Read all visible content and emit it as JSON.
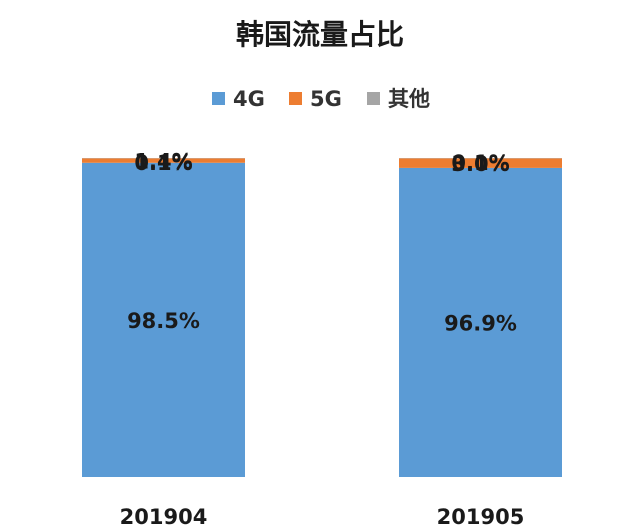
{
  "chart_data": {
    "type": "bar",
    "stacked": true,
    "percent_stacked": true,
    "title": "韩国流量占比",
    "legend_position": "top",
    "grid": false,
    "categories": [
      "201904",
      "201905"
    ],
    "series": [
      {
        "name": "4G",
        "color": "#5b9bd5",
        "values": [
          98.5,
          96.9
        ],
        "labels": [
          "98.5%",
          "96.9%"
        ]
      },
      {
        "name": "5G",
        "color": "#ed7d31",
        "values": [
          1.4,
          3.0
        ],
        "labels": [
          "1.4%",
          "3.0%"
        ]
      },
      {
        "name": "其他",
        "color": "#a5a5a5",
        "values": [
          0.1,
          0.1
        ],
        "labels": [
          "0.1%",
          "0.1%"
        ]
      }
    ],
    "ylim": [
      0,
      100
    ]
  }
}
